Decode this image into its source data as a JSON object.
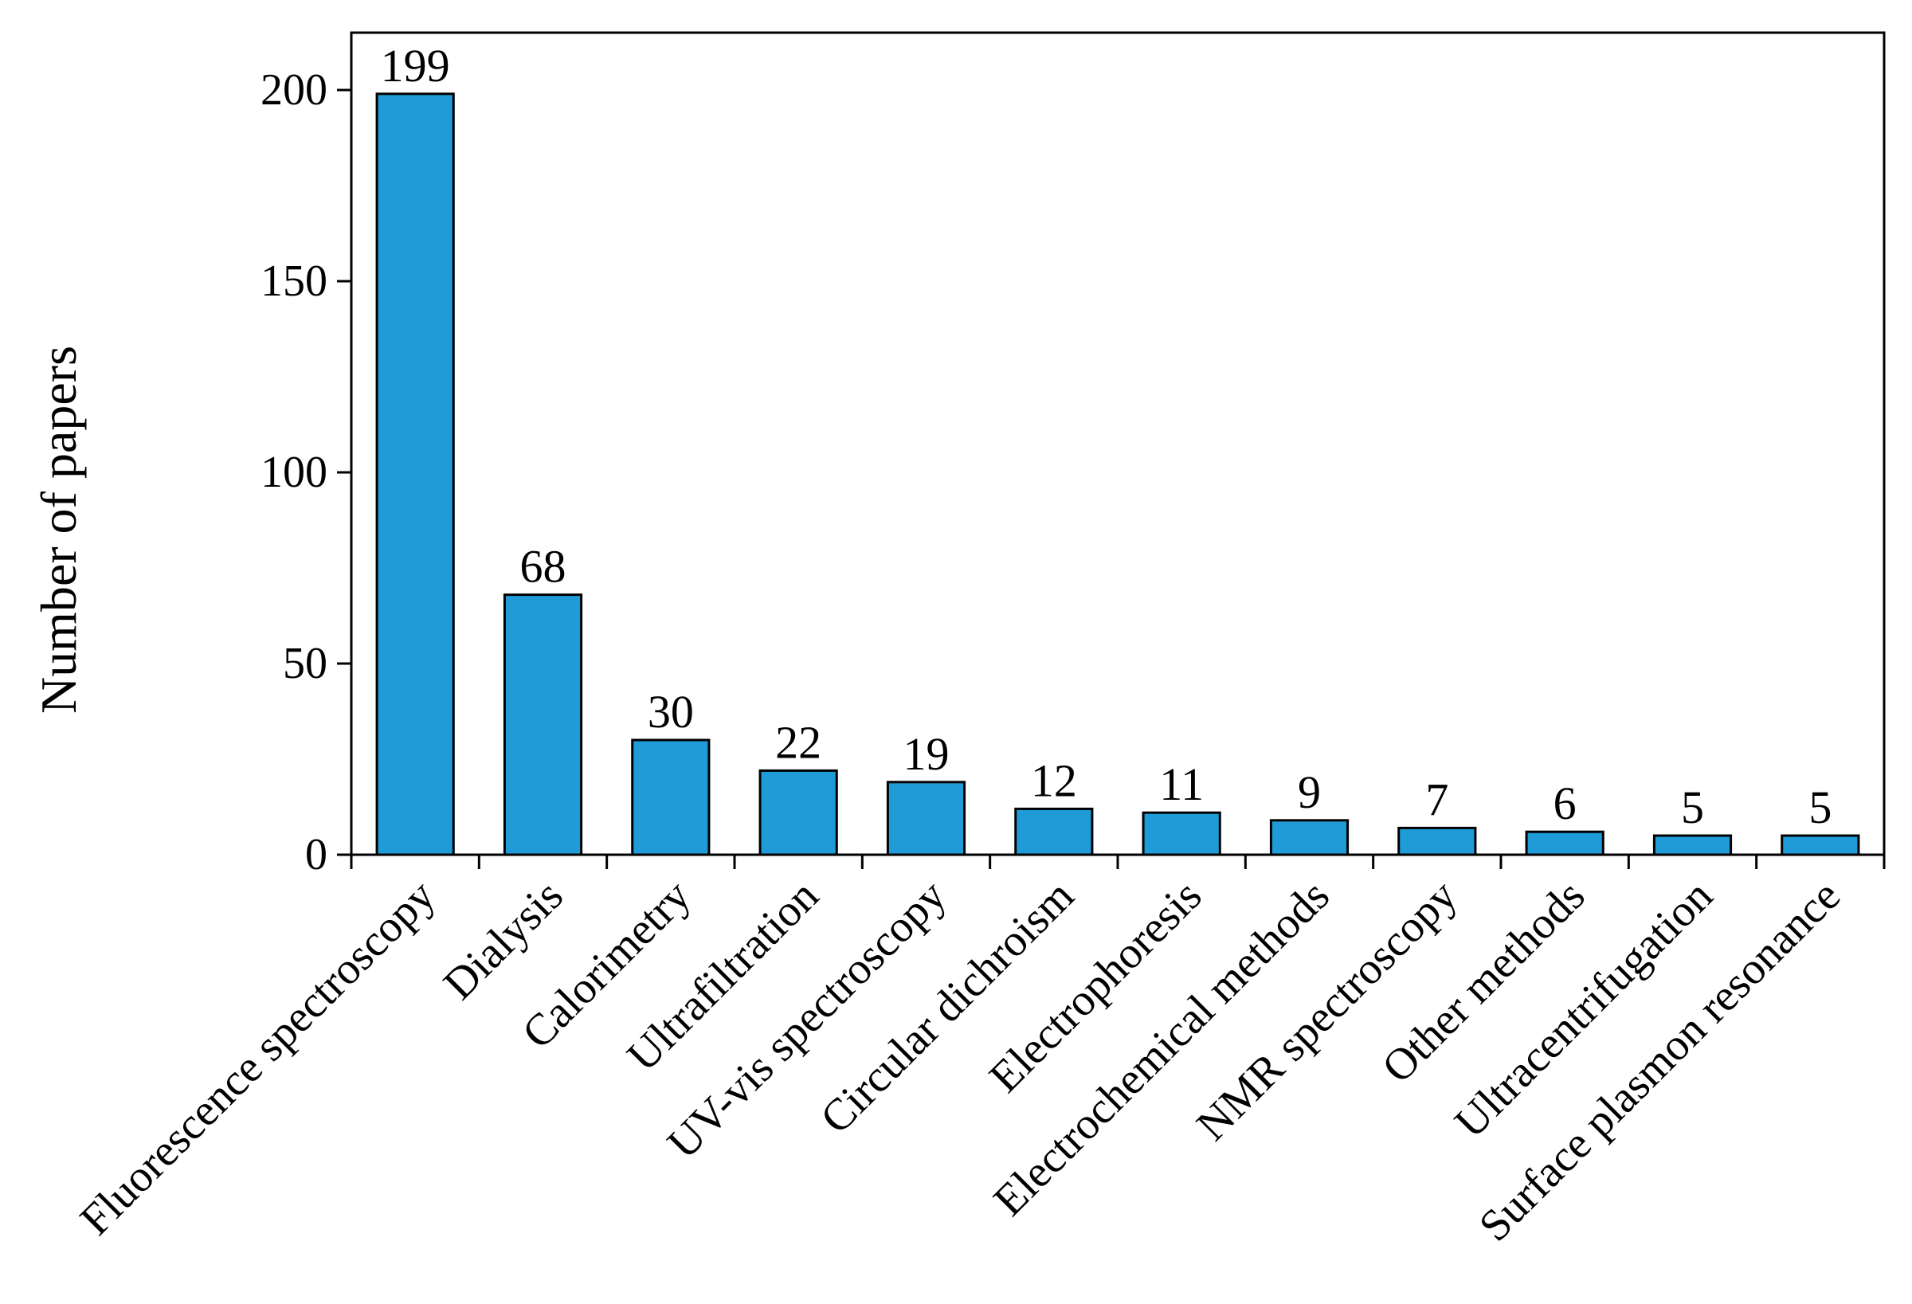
{
  "chart_data": {
    "type": "bar",
    "y_label": "Number of papers",
    "categories": [
      "Fluorescence spectroscopy",
      "Dialysis",
      "Calorimetry",
      "Ultrafiltration",
      "UV-vis spectroscopy",
      "Circular dichroism",
      "Electrophoresis",
      "Electrochemical methods",
      "NMR spectroscopy",
      "Other methods",
      "Ultracentrifugation",
      "Surface plasmon resonance"
    ],
    "values": [
      199,
      68,
      30,
      22,
      19,
      12,
      11,
      9,
      7,
      6,
      5,
      5
    ],
    "color": "#1f9cd8",
    "ylim": [
      0,
      215
    ],
    "yticks": [
      0,
      50,
      100,
      150,
      200
    ],
    "grid": false
  }
}
